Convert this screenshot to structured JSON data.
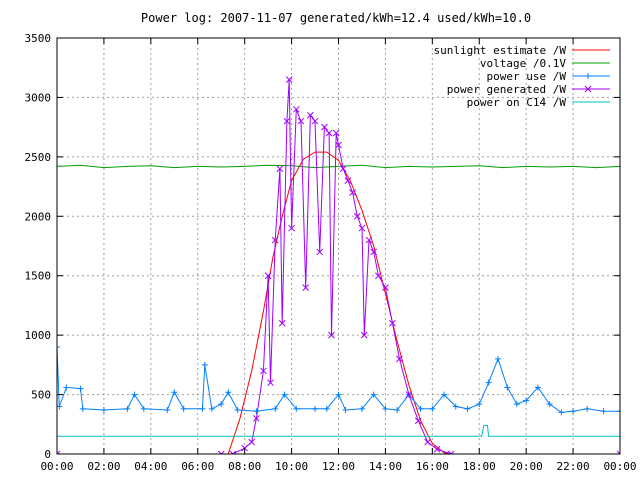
{
  "chart_data": {
    "type": "line",
    "title": "Power log: 2007-11-07 generated/kWh=12.4 used/kWh=10.0",
    "xlabel": "",
    "ylabel": "",
    "xlim": [
      0,
      24
    ],
    "ylim": [
      0,
      3500
    ],
    "x_ticks": [
      "00:00",
      "02:00",
      "04:00",
      "06:00",
      "08:00",
      "10:00",
      "12:00",
      "14:00",
      "16:00",
      "18:00",
      "20:00",
      "22:00",
      "00:00"
    ],
    "y_ticks": [
      "0",
      "500",
      "1000",
      "1500",
      "2000",
      "2500",
      "3000",
      "3500"
    ],
    "grid": true,
    "legend_position": "top-right",
    "series": [
      {
        "name": "sunlight estimate /W",
        "color": "#ff0000",
        "style": "line",
        "points": [
          [
            0,
            0
          ],
          [
            7.3,
            0
          ],
          [
            7.8,
            300
          ],
          [
            8.3,
            700
          ],
          [
            8.8,
            1200
          ],
          [
            9.2,
            1650
          ],
          [
            9.6,
            2000
          ],
          [
            10.0,
            2300
          ],
          [
            10.5,
            2480
          ],
          [
            11.0,
            2540
          ],
          [
            11.5,
            2540
          ],
          [
            12.0,
            2470
          ],
          [
            12.5,
            2300
          ],
          [
            13.0,
            2050
          ],
          [
            13.5,
            1750
          ],
          [
            14.0,
            1350
          ],
          [
            14.5,
            950
          ],
          [
            15.0,
            580
          ],
          [
            15.5,
            280
          ],
          [
            16.0,
            90
          ],
          [
            16.5,
            10
          ],
          [
            16.8,
            0
          ],
          [
            24,
            0
          ]
        ]
      },
      {
        "name": "voltage /0.1V",
        "color": "#00a000",
        "style": "line",
        "points": [
          [
            0,
            2420
          ],
          [
            1,
            2430
          ],
          [
            2,
            2410
          ],
          [
            3,
            2420
          ],
          [
            4,
            2425
          ],
          [
            5,
            2410
          ],
          [
            6,
            2420
          ],
          [
            7,
            2415
          ],
          [
            8,
            2420
          ],
          [
            9,
            2430
          ],
          [
            10,
            2425
          ],
          [
            11,
            2410
          ],
          [
            12,
            2420
          ],
          [
            13,
            2430
          ],
          [
            14,
            2410
          ],
          [
            15,
            2420
          ],
          [
            16,
            2415
          ],
          [
            17,
            2420
          ],
          [
            18,
            2425
          ],
          [
            19,
            2410
          ],
          [
            20,
            2420
          ],
          [
            21,
            2415
          ],
          [
            22,
            2420
          ],
          [
            23,
            2410
          ],
          [
            24,
            2420
          ]
        ]
      },
      {
        "name": "power use /W",
        "color": "#0080ff",
        "style": "linespoints-plus",
        "points": [
          [
            0,
            900
          ],
          [
            0.1,
            400
          ],
          [
            0.4,
            560
          ],
          [
            1.0,
            550
          ],
          [
            1.1,
            380
          ],
          [
            2.0,
            370
          ],
          [
            3.0,
            380
          ],
          [
            3.3,
            500
          ],
          [
            3.7,
            380
          ],
          [
            4.7,
            370
          ],
          [
            5.0,
            520
          ],
          [
            5.4,
            380
          ],
          [
            6.2,
            380
          ],
          [
            6.3,
            750
          ],
          [
            6.6,
            380
          ],
          [
            7.0,
            420
          ],
          [
            7.3,
            520
          ],
          [
            7.7,
            370
          ],
          [
            8.5,
            360
          ],
          [
            9.3,
            380
          ],
          [
            9.7,
            500
          ],
          [
            10.2,
            380
          ],
          [
            11.0,
            380
          ],
          [
            11.5,
            380
          ],
          [
            12.0,
            500
          ],
          [
            12.3,
            370
          ],
          [
            13.0,
            380
          ],
          [
            13.5,
            500
          ],
          [
            14.0,
            380
          ],
          [
            14.5,
            370
          ],
          [
            15.0,
            500
          ],
          [
            15.5,
            380
          ],
          [
            16.0,
            380
          ],
          [
            16.5,
            500
          ],
          [
            17.0,
            400
          ],
          [
            17.5,
            380
          ],
          [
            18.0,
            420
          ],
          [
            18.4,
            600
          ],
          [
            18.8,
            800
          ],
          [
            19.2,
            560
          ],
          [
            19.6,
            420
          ],
          [
            20.0,
            450
          ],
          [
            20.5,
            560
          ],
          [
            21.0,
            420
          ],
          [
            21.5,
            350
          ],
          [
            22.0,
            360
          ],
          [
            22.6,
            380
          ],
          [
            23.3,
            360
          ],
          [
            24,
            360
          ]
        ]
      },
      {
        "name": "power generated /W",
        "color": "#a000ff",
        "style": "linespoints-cross",
        "points": [
          [
            0,
            0
          ],
          [
            7.0,
            0
          ],
          [
            7.5,
            0
          ],
          [
            8.0,
            50
          ],
          [
            8.3,
            100
          ],
          [
            8.5,
            300
          ],
          [
            8.8,
            700
          ],
          [
            9.0,
            1500
          ],
          [
            9.1,
            600
          ],
          [
            9.3,
            1800
          ],
          [
            9.5,
            2400
          ],
          [
            9.6,
            1100
          ],
          [
            9.8,
            2800
          ],
          [
            9.9,
            3150
          ],
          [
            10.0,
            1900
          ],
          [
            10.2,
            2900
          ],
          [
            10.4,
            2800
          ],
          [
            10.6,
            1400
          ],
          [
            10.8,
            2850
          ],
          [
            11.0,
            2800
          ],
          [
            11.2,
            1700
          ],
          [
            11.4,
            2750
          ],
          [
            11.6,
            2700
          ],
          [
            11.7,
            1000
          ],
          [
            11.9,
            2700
          ],
          [
            12.0,
            2600
          ],
          [
            12.2,
            2400
          ],
          [
            12.4,
            2300
          ],
          [
            12.6,
            2200
          ],
          [
            12.8,
            2000
          ],
          [
            13.0,
            1900
          ],
          [
            13.1,
            1000
          ],
          [
            13.3,
            1800
          ],
          [
            13.5,
            1700
          ],
          [
            13.7,
            1500
          ],
          [
            14.0,
            1400
          ],
          [
            14.3,
            1100
          ],
          [
            14.6,
            800
          ],
          [
            15.0,
            500
          ],
          [
            15.4,
            280
          ],
          [
            15.8,
            100
          ],
          [
            16.2,
            40
          ],
          [
            16.8,
            0
          ],
          [
            24,
            0
          ]
        ]
      },
      {
        "name": "power on C14 /W",
        "color": "#00c0c0",
        "style": "line",
        "points": [
          [
            0,
            150
          ],
          [
            6,
            150
          ],
          [
            12,
            150
          ],
          [
            18.1,
            150
          ],
          [
            18.2,
            240
          ],
          [
            18.35,
            240
          ],
          [
            18.4,
            150
          ],
          [
            24,
            150
          ]
        ]
      }
    ]
  }
}
